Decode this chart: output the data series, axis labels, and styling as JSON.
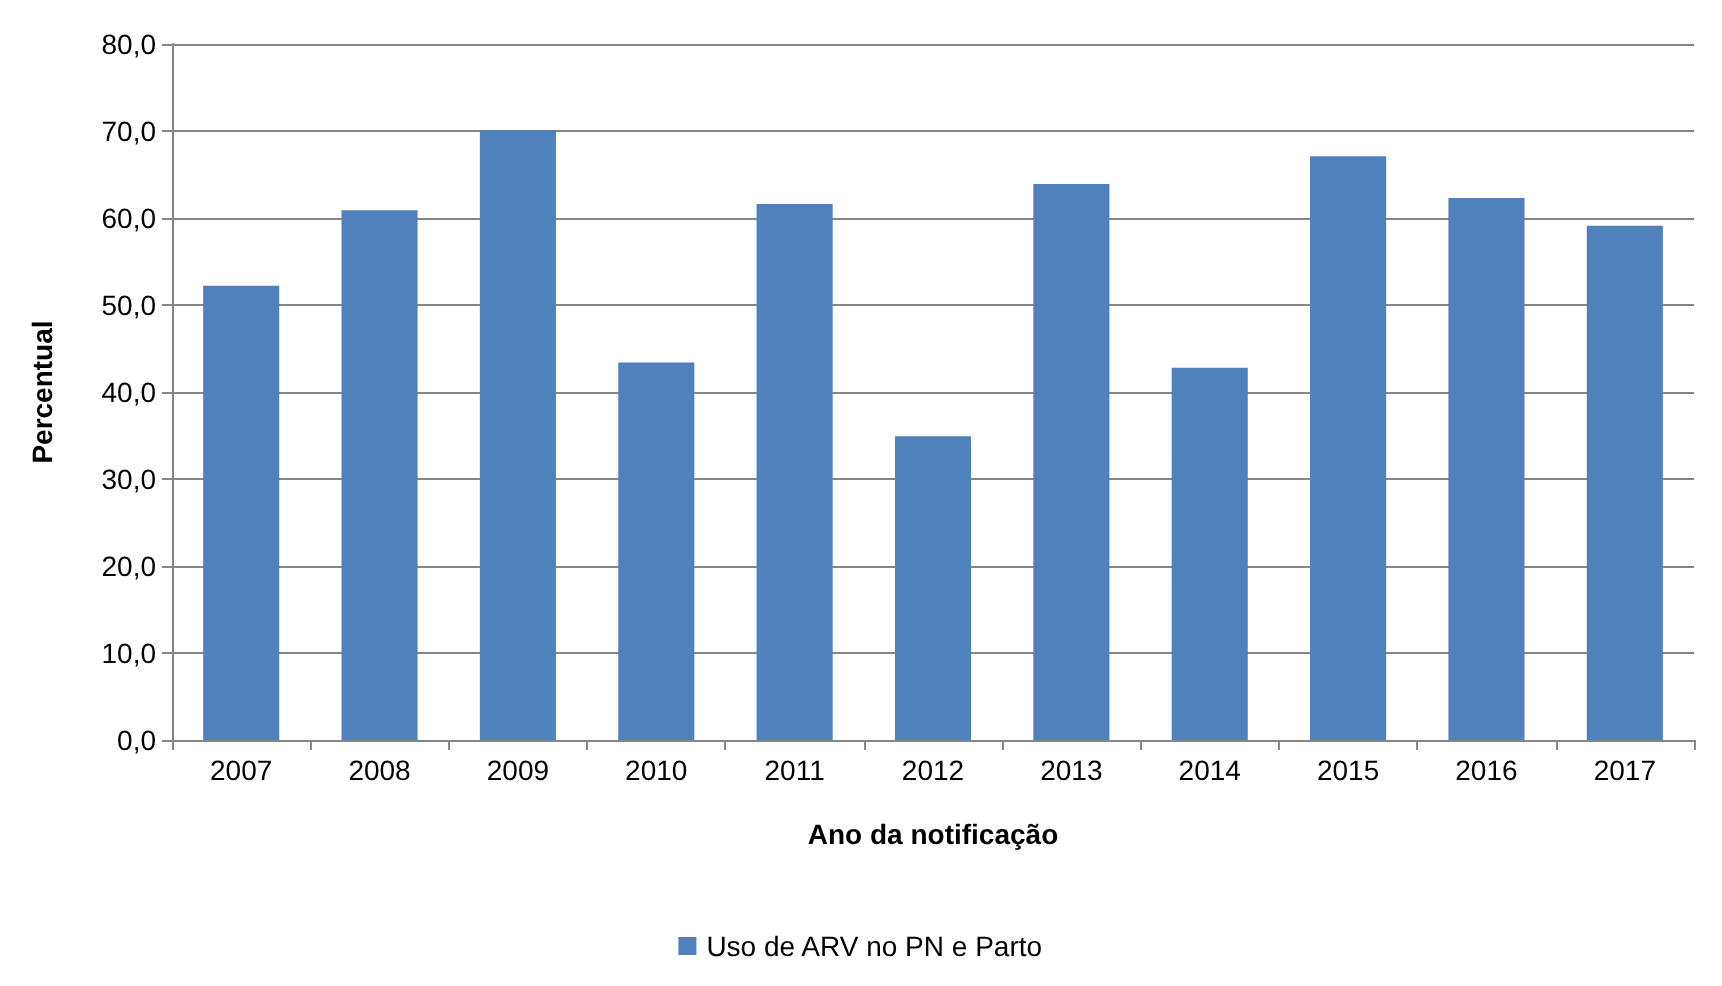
{
  "chart_data": {
    "type": "bar",
    "xlabel": "Ano da notificação",
    "ylabel": "Percentual",
    "categories": [
      "2007",
      "2008",
      "2009",
      "2010",
      "2011",
      "2012",
      "2013",
      "2014",
      "2015",
      "2016",
      "2017"
    ],
    "series": [
      {
        "name": "Uso de ARV no PN e Parto",
        "color": "#4f81bd",
        "values": [
          52.2,
          60.9,
          70.1,
          43.4,
          61.6,
          34.9,
          63.9,
          42.8,
          67.1,
          62.3,
          59.1
        ]
      }
    ],
    "ylim": [
      0,
      80
    ],
    "yticks": [
      {
        "value": 0,
        "label": "0,0"
      },
      {
        "value": 10,
        "label": "10,0"
      },
      {
        "value": 20,
        "label": "20,0"
      },
      {
        "value": 30,
        "label": "30,0"
      },
      {
        "value": 40,
        "label": "40,0"
      },
      {
        "value": 50,
        "label": "50,0"
      },
      {
        "value": 60,
        "label": "60,0"
      },
      {
        "value": 70,
        "label": "70,0"
      },
      {
        "value": 80,
        "label": "80,0"
      }
    ],
    "grid": "y",
    "legend": "bottom"
  }
}
